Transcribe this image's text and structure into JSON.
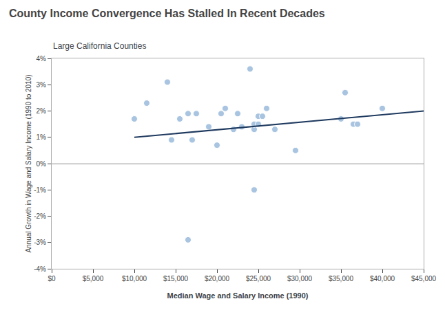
{
  "chart_data": {
    "type": "scatter",
    "title": "County Income Convergence Has Stalled In Recent Decades",
    "subtitle": "Large California Counties",
    "xlabel": "Median Wage and Salary Income (1990)",
    "ylabel": "Annual Growth in Wage and Salary Income (1990 to 2010)",
    "series": [
      {
        "type": "scatter",
        "marker": "circle",
        "color": "#a8c4e0",
        "x": [
          10000,
          11500,
          14000,
          14500,
          15500,
          16500,
          17000,
          17500,
          19000,
          20000,
          20500,
          21000,
          22000,
          22500,
          23000,
          24000,
          24500,
          24500,
          25000,
          25000,
          25500,
          26000,
          27000,
          29500,
          35000,
          35500,
          36500,
          37000,
          40000,
          24500,
          16500
        ],
        "values": [
          0.017,
          0.023,
          0.031,
          0.009,
          0.017,
          0.019,
          0.009,
          0.019,
          0.014,
          0.007,
          0.019,
          0.021,
          0.013,
          0.019,
          0.014,
          0.036,
          0.013,
          0.015,
          0.018,
          0.015,
          0.018,
          0.021,
          0.013,
          0.005,
          0.017,
          0.027,
          0.015,
          0.015,
          0.021,
          -0.01,
          -0.029
        ]
      },
      {
        "type": "line",
        "line_style": "solid",
        "color": "#1f3a5f",
        "x": [
          10000,
          45000
        ],
        "values": [
          0.01,
          0.02
        ]
      }
    ],
    "xlim": [
      0,
      45000
    ],
    "ylim": [
      -0.04,
      0.04
    ],
    "xticks": [
      {
        "value": 0,
        "label": "$0"
      },
      {
        "value": 5000,
        "label": "$5,000"
      },
      {
        "value": 10000,
        "label": "$10,000"
      },
      {
        "value": 15000,
        "label": "$15,000"
      },
      {
        "value": 20000,
        "label": "$20,000"
      },
      {
        "value": 25000,
        "label": "$25,000"
      },
      {
        "value": 30000,
        "label": "$30,000"
      },
      {
        "value": 35000,
        "label": "$35,000"
      },
      {
        "value": 40000,
        "label": "$40,000"
      },
      {
        "value": 45000,
        "label": "$45,000"
      }
    ],
    "yticks": [
      {
        "value": -0.04,
        "label": "-4%"
      },
      {
        "value": -0.03,
        "label": "-3%"
      },
      {
        "value": -0.02,
        "label": "-2%"
      },
      {
        "value": -0.01,
        "label": "-1%"
      },
      {
        "value": 0.0,
        "label": "0%"
      },
      {
        "value": 0.01,
        "label": "1%"
      },
      {
        "value": 0.02,
        "label": "2%"
      },
      {
        "value": 0.03,
        "label": "3%"
      },
      {
        "value": 0.04,
        "label": "4%"
      }
    ],
    "grid": false
  }
}
